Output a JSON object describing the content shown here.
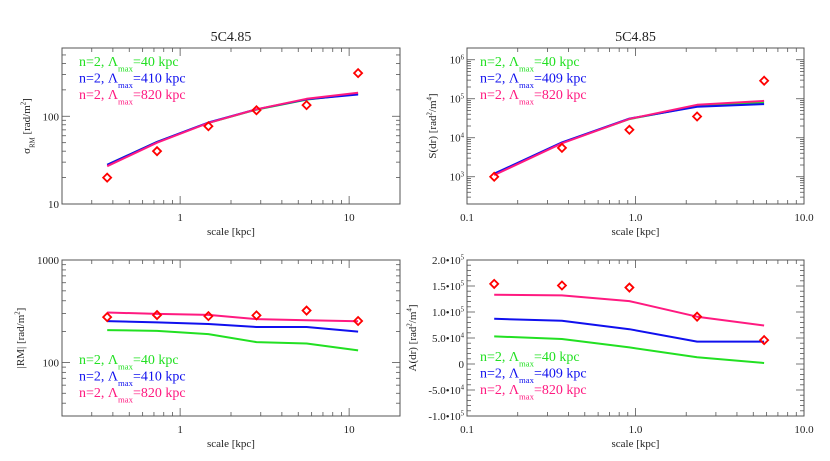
{
  "colors": {
    "green": "#22e022",
    "blue": "#1010ee",
    "pink": "#ff1a80",
    "data": "#ff0000",
    "axis": "#555555"
  },
  "chart_data": [
    {
      "type": "line",
      "title": "5C4.85",
      "xlabel": "scale [kpc]",
      "ylabel": [
        [
          "σ",
          ""
        ],
        [
          "RM",
          "sub"
        ],
        [
          " [rad/m",
          ""
        ],
        [
          "2",
          "sup"
        ],
        [
          "]",
          ""
        ]
      ],
      "xscale": "log",
      "yscale": "log",
      "xlim": [
        0.2,
        20
      ],
      "ylim": [
        10,
        600
      ],
      "xticks": [
        {
          "v": 1,
          "label": "1"
        },
        {
          "v": 10,
          "label": "10"
        }
      ],
      "yticks": [
        {
          "v": 10,
          "label": "10"
        },
        {
          "v": 100,
          "label": "100"
        }
      ],
      "legend_placement": "top-left",
      "x": [
        0.37,
        0.73,
        1.47,
        2.83,
        5.6,
        11.3
      ],
      "observed": [
        20,
        40,
        77,
        117,
        134,
        310
      ],
      "series": [
        {
          "name": [
            [
              "n=2, Λ",
              ""
            ],
            [
              "max",
              "sub"
            ],
            [
              "=40 kpc",
              ""
            ]
          ],
          "color": "green",
          "values": [
            28,
            51,
            84,
            119,
            155,
            181
          ]
        },
        {
          "name": [
            [
              "n=2, Λ",
              ""
            ],
            [
              "max",
              "sub"
            ],
            [
              "=410 kpc",
              ""
            ]
          ],
          "color": "blue",
          "values": [
            28,
            51,
            85,
            120,
            156,
            177
          ]
        },
        {
          "name": [
            [
              "n=2, Λ",
              ""
            ],
            [
              "max",
              "sub"
            ],
            [
              "=820 kpc",
              ""
            ]
          ],
          "color": "pink",
          "values": [
            27,
            50,
            84,
            120,
            158,
            185
          ]
        }
      ]
    },
    {
      "type": "line",
      "title": "5C4.85",
      "xlabel": "scale [kpc]",
      "ylabel": [
        [
          "S(dr) [rad",
          ""
        ],
        [
          "2",
          "sup"
        ],
        [
          "/m",
          ""
        ],
        [
          "4",
          "sup"
        ],
        [
          "]",
          ""
        ]
      ],
      "xscale": "log",
      "yscale": "log",
      "xlim": [
        0.1,
        10
      ],
      "ylim": [
        200,
        2000000
      ],
      "xticks": [
        {
          "v": 0.1,
          "label": "0.1"
        },
        {
          "v": 1,
          "label": "1.0"
        },
        {
          "v": 10,
          "label": "10.0"
        }
      ],
      "yticks": [
        {
          "v": 1000,
          "label": "10",
          "exp": "3"
        },
        {
          "v": 10000,
          "label": "10",
          "exp": "4"
        },
        {
          "v": 100000,
          "label": "10",
          "exp": "5"
        },
        {
          "v": 1000000,
          "label": "10",
          "exp": "6"
        }
      ],
      "legend_placement": "top-left",
      "x": [
        0.145,
        0.366,
        0.92,
        2.32,
        5.8
      ],
      "observed": [
        1000,
        5500,
        16000,
        35000,
        290000
      ],
      "series": [
        {
          "name": [
            [
              "n=2, Λ",
              ""
            ],
            [
              "max",
              "sub"
            ],
            [
              "=40 kpc",
              ""
            ]
          ],
          "color": "green",
          "values": [
            1150,
            7400,
            30000,
            64000,
            80000
          ]
        },
        {
          "name": [
            [
              "n=2, Λ",
              ""
            ],
            [
              "max",
              "sub"
            ],
            [
              "=409 kpc",
              ""
            ]
          ],
          "color": "blue",
          "values": [
            1200,
            7600,
            31000,
            62000,
            73000
          ]
        },
        {
          "name": [
            [
              "n=2, Λ",
              ""
            ],
            [
              "max",
              "sub"
            ],
            [
              "=820 kpc",
              ""
            ]
          ],
          "color": "pink",
          "values": [
            1100,
            7200,
            30500,
            70000,
            88000
          ]
        }
      ]
    },
    {
      "type": "line",
      "title": "",
      "xlabel": "scale [kpc]",
      "ylabel": [
        [
          "|RM| [rad/m",
          ""
        ],
        [
          "2",
          "sup"
        ],
        [
          "]",
          ""
        ]
      ],
      "xscale": "log",
      "yscale": "log",
      "xlim": [
        0.2,
        20
      ],
      "ylim": [
        30,
        1000
      ],
      "xticks": [
        {
          "v": 1,
          "label": "1"
        },
        {
          "v": 10,
          "label": "10"
        }
      ],
      "yticks": [
        {
          "v": 100,
          "label": "100"
        },
        {
          "v": 1000,
          "label": "1000"
        }
      ],
      "legend_placement": "bottom-left",
      "x": [
        0.37,
        0.73,
        1.47,
        2.83,
        5.6,
        11.3
      ],
      "observed": [
        277,
        290,
        283,
        288,
        321,
        254
      ],
      "series": [
        {
          "name": [
            [
              "n=2, Λ",
              ""
            ],
            [
              "max",
              "sub"
            ],
            [
              "=40 kpc",
              ""
            ]
          ],
          "color": "green",
          "values": [
            207,
            203,
            189,
            158,
            153,
            131
          ]
        },
        {
          "name": [
            [
              "n=2, Λ",
              ""
            ],
            [
              "max",
              "sub"
            ],
            [
              "=410 kpc",
              ""
            ]
          ],
          "color": "blue",
          "values": [
            253,
            246,
            237,
            222,
            222,
            200
          ]
        },
        {
          "name": [
            [
              "n=2, Λ",
              ""
            ],
            [
              "max",
              "sub"
            ],
            [
              "=820 kpc",
              ""
            ]
          ],
          "color": "pink",
          "values": [
            307,
            298,
            291,
            265,
            258,
            252
          ]
        }
      ]
    },
    {
      "type": "line",
      "title": "",
      "xlabel": "scale [kpc]",
      "ylabel": [
        [
          "A(dr) [rad",
          ""
        ],
        [
          "2",
          "sup"
        ],
        [
          "/m",
          ""
        ],
        [
          "4",
          "sup"
        ],
        [
          "]",
          ""
        ]
      ],
      "xscale": "log",
      "yscale": "linear",
      "xlim": [
        0.1,
        10
      ],
      "ylim": [
        -100000,
        200000
      ],
      "xticks": [
        {
          "v": 0.1,
          "label": "0.1"
        },
        {
          "v": 1,
          "label": "1.0"
        },
        {
          "v": 10,
          "label": "10.0"
        }
      ],
      "yticks": [
        {
          "v": 200000,
          "label": "2.0•10",
          "exp": "5"
        },
        {
          "v": 150000,
          "label": "1.5•10",
          "exp": "5"
        },
        {
          "v": 100000,
          "label": "1.0•10",
          "exp": "5"
        },
        {
          "v": 50000,
          "label": "5.0•10",
          "exp": "4"
        },
        {
          "v": 0,
          "label": "0"
        },
        {
          "v": -50000,
          "label": "-5.0•10",
          "exp": "4"
        },
        {
          "v": -100000,
          "label": "-1.0•10",
          "exp": "5"
        }
      ],
      "legend_placement": "bottom-left",
      "x": [
        0.145,
        0.366,
        0.92,
        2.32,
        5.8
      ],
      "observed": [
        154000,
        151000,
        147000,
        91000,
        46000
      ],
      "series": [
        {
          "name": [
            [
              "n=2, Λ",
              ""
            ],
            [
              "max",
              "sub"
            ],
            [
              "=40 kpc",
              ""
            ]
          ],
          "color": "green",
          "values": [
            53000,
            48000,
            32000,
            13000,
            2000
          ]
        },
        {
          "name": [
            [
              "n=2, Λ",
              ""
            ],
            [
              "max",
              "sub"
            ],
            [
              "=409 kpc",
              ""
            ]
          ],
          "color": "blue",
          "values": [
            87000,
            83000,
            67000,
            43000,
            43000
          ]
        },
        {
          "name": [
            [
              "n=2, Λ",
              ""
            ],
            [
              "max",
              "sub"
            ],
            [
              "=820 kpc",
              ""
            ]
          ],
          "color": "pink",
          "values": [
            133000,
            132000,
            121000,
            91000,
            74000
          ]
        }
      ]
    }
  ]
}
